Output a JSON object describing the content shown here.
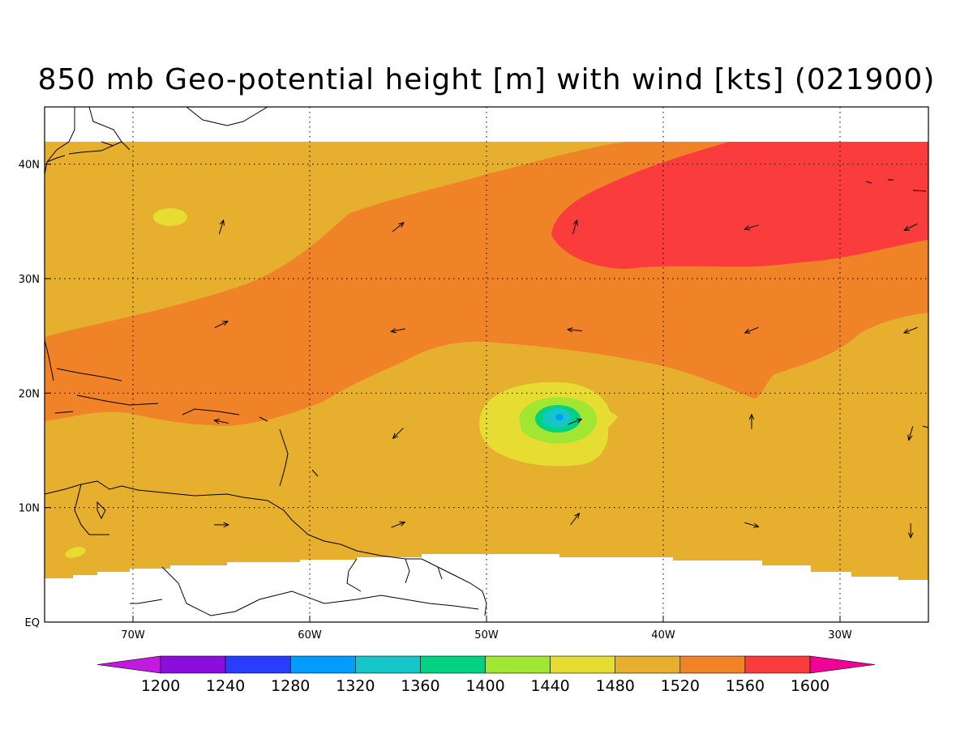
{
  "title": "850 mb Geo-potential height [m] with wind [kts] (021900)",
  "axes": {
    "x_ticks": [
      "70W",
      "60W",
      "50W",
      "40W",
      "30W"
    ],
    "y_ticks": [
      "EQ",
      "10N",
      "20N",
      "30N",
      "40N"
    ],
    "lon_range": [
      -75,
      -25
    ],
    "lat_range": [
      0,
      45
    ]
  },
  "colorbar": {
    "labels": [
      "1200",
      "1240",
      "1280",
      "1320",
      "1360",
      "1400",
      "1440",
      "1480",
      "1520",
      "1560",
      "1600"
    ],
    "colors": [
      "#c21be0",
      "#8a0fdc",
      "#2a3cff",
      "#009cff",
      "#14c6c8",
      "#00d282",
      "#a0e632",
      "#e6dc32",
      "#e6af2d",
      "#f08228",
      "#fa3c3c",
      "#f00096"
    ],
    "extend": "both"
  },
  "map_colors": {
    "c1480": "#e6dc32",
    "c1520": "#e6af2d",
    "c1560": "#f08228",
    "c1600": "#fa3c3c",
    "c1440": "#a0e632",
    "c1400": "#00d282",
    "c1360": "#14c6c8",
    "c1320": "#009cff"
  },
  "chart_data": {
    "type": "heatmap",
    "title": "850 mb Geo-potential height [m] with wind [kts] (021900)",
    "xlabel": "",
    "ylabel": "",
    "xlim": [
      -75,
      -25
    ],
    "ylim": [
      0,
      45
    ],
    "grid": true,
    "contour_levels": [
      1200,
      1240,
      1280,
      1320,
      1360,
      1400,
      1440,
      1480,
      1520,
      1560,
      1600
    ],
    "data_lat_range": [
      4,
      42
    ],
    "features": [
      {
        "name": "subtropical high",
        "level": 1600,
        "center": [
          -35,
          36
        ]
      },
      {
        "name": "low center",
        "level": 1320,
        "center": [
          -46,
          18
        ]
      }
    ],
    "wind_vectors": [
      {
        "lon": -65,
        "lat": 34.5,
        "u": 0.3,
        "v": 1
      },
      {
        "lon": -55,
        "lat": 34.5,
        "u": 1,
        "v": 0.8
      },
      {
        "lon": -45,
        "lat": 34.5,
        "u": 0.3,
        "v": 1
      },
      {
        "lon": -35,
        "lat": 34.5,
        "u": -1,
        "v": -0.3
      },
      {
        "lon": -26,
        "lat": 34.5,
        "u": -1,
        "v": -0.5
      },
      {
        "lon": -65,
        "lat": 26,
        "u": 1,
        "v": 0.5
      },
      {
        "lon": -55,
        "lat": 25.5,
        "u": -1,
        "v": -0.2
      },
      {
        "lon": -45,
        "lat": 25.5,
        "u": -1,
        "v": 0.1
      },
      {
        "lon": -35,
        "lat": 25.5,
        "u": -1,
        "v": -0.4
      },
      {
        "lon": -26,
        "lat": 25.5,
        "u": -1,
        "v": -0.4
      },
      {
        "lon": -65,
        "lat": 17.5,
        "u": -1,
        "v": 0.2
      },
      {
        "lon": -55,
        "lat": 16.5,
        "u": -0.7,
        "v": -0.7
      },
      {
        "lon": -45,
        "lat": 17.5,
        "u": 1,
        "v": 0.4
      },
      {
        "lon": -35,
        "lat": 17.5,
        "u": 0,
        "v": 1
      },
      {
        "lon": -26,
        "lat": 16.5,
        "u": -0.3,
        "v": -1
      },
      {
        "lon": -65,
        "lat": 8.5,
        "u": 1,
        "v": 0
      },
      {
        "lon": -55,
        "lat": 8.5,
        "u": 1,
        "v": 0.4
      },
      {
        "lon": -45,
        "lat": 9,
        "u": 0.6,
        "v": 0.8
      },
      {
        "lon": -35,
        "lat": 8.5,
        "u": 1,
        "v": -0.3
      },
      {
        "lon": -26,
        "lat": 8,
        "u": 0,
        "v": -1
      }
    ]
  }
}
